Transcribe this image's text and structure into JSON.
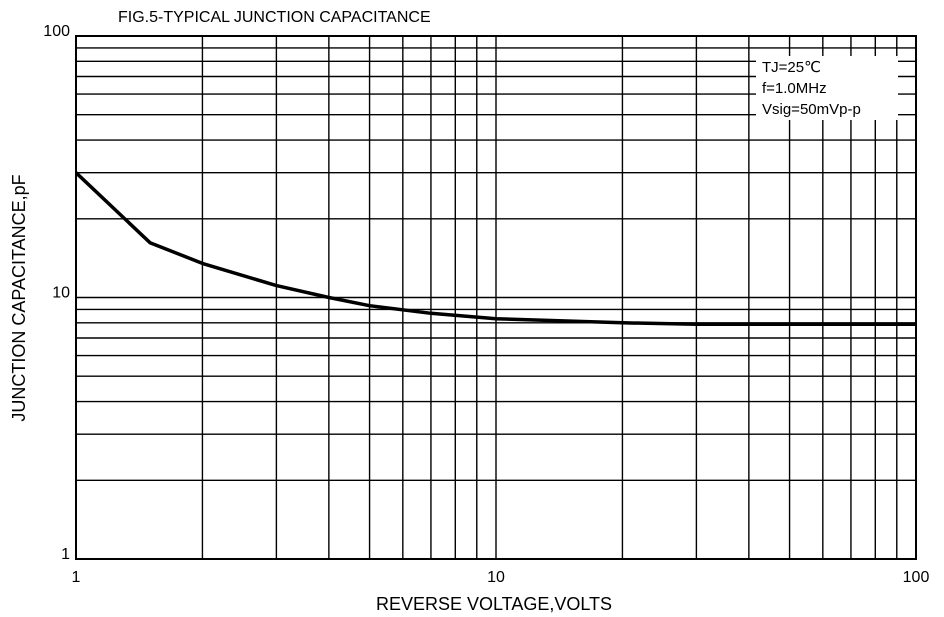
{
  "chart_data": {
    "type": "line",
    "title": "FIG.5-TYPICAL JUNCTION CAPACITANCE",
    "x_label": "REVERSE VOLTAGE,VOLTS",
    "y_label": "JUNCTION CAPACITANCE,pF",
    "x_scale": "log",
    "y_scale": "log",
    "xlim": [
      1,
      100
    ],
    "ylim": [
      1,
      100
    ],
    "xticks": [
      1,
      10,
      100
    ],
    "yticks": [
      1,
      10,
      100
    ],
    "x_minor_grid": [
      2,
      3,
      4,
      5,
      6,
      7,
      8,
      9,
      20,
      30,
      40,
      50,
      60,
      70,
      80,
      90
    ],
    "y_minor_grid": [
      2,
      3,
      4,
      5,
      6,
      7,
      8,
      9,
      20,
      30,
      40,
      50,
      60,
      70,
      80,
      90
    ],
    "grid": true,
    "annotations": [
      "TJ=25℃",
      "f=1.0MHz",
      "Vsig=50mVp-p"
    ],
    "series": [
      {
        "name": "Junction capacitance",
        "color": "#000000",
        "x": [
          1,
          1.5,
          2,
          3,
          4,
          5,
          7,
          10,
          20,
          30,
          50,
          100
        ],
        "values": [
          30,
          16.2,
          13.5,
          11.1,
          10,
          9.3,
          8.7,
          8.3,
          8.0,
          7.9,
          7.9,
          7.9
        ]
      }
    ]
  }
}
